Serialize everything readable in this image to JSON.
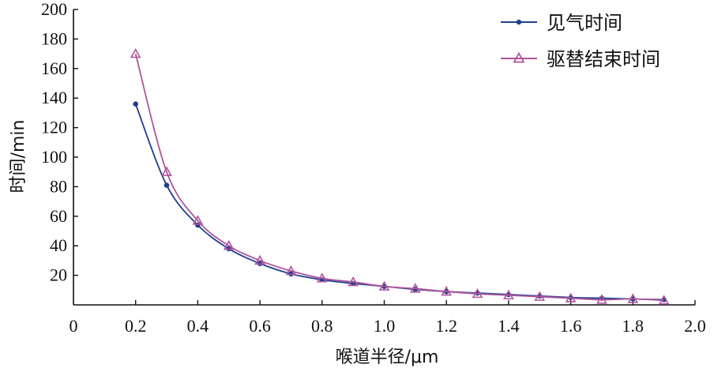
{
  "chart_data": {
    "type": "line",
    "xlabel": "喉道半径/μm",
    "ylabel": "时间/min",
    "xlim": [
      0,
      2.0
    ],
    "ylim": [
      0,
      200
    ],
    "x_ticks": [
      "0",
      "0.2",
      "0.4",
      "0.6",
      "0.8",
      "1.0",
      "1.2",
      "1.4",
      "1.6",
      "1.8",
      "2.0"
    ],
    "x_tick_values": [
      0,
      0.2,
      0.4,
      0.6,
      0.8,
      1.0,
      1.2,
      1.4,
      1.6,
      1.8,
      2.0
    ],
    "y_ticks": [
      "20",
      "40",
      "60",
      "80",
      "100",
      "120",
      "140",
      "160",
      "180",
      "200"
    ],
    "y_tick_values": [
      20,
      40,
      60,
      80,
      100,
      120,
      140,
      160,
      180,
      200
    ],
    "grid": false,
    "legend_position": "top-right",
    "series": [
      {
        "name": "见气时间",
        "color": "#1f3f8f",
        "marker": "circle",
        "x": [
          0.2,
          0.3,
          0.4,
          0.5,
          0.6,
          0.7,
          0.8,
          0.9,
          1.0,
          1.1,
          1.2,
          1.3,
          1.4,
          1.5,
          1.6,
          1.7,
          1.8,
          1.9
        ],
        "y": [
          136,
          81,
          54,
          38,
          28,
          21,
          17,
          14.5,
          12.5,
          10.5,
          9,
          8,
          7,
          6,
          5,
          4.5,
          4,
          3.5
        ]
      },
      {
        "name": "驱替结束时间",
        "color": "#b0559c",
        "marker": "triangle",
        "x": [
          0.2,
          0.3,
          0.4,
          0.5,
          0.6,
          0.7,
          0.8,
          0.9,
          1.0,
          1.1,
          1.2,
          1.3,
          1.4,
          1.5,
          1.6,
          1.7,
          1.8,
          1.9
        ],
        "y": [
          170,
          90,
          57,
          40,
          30,
          23,
          18,
          15.5,
          12.5,
          11,
          9,
          7.5,
          6.5,
          5.5,
          4.5,
          3.5,
          4,
          3
        ]
      }
    ]
  }
}
